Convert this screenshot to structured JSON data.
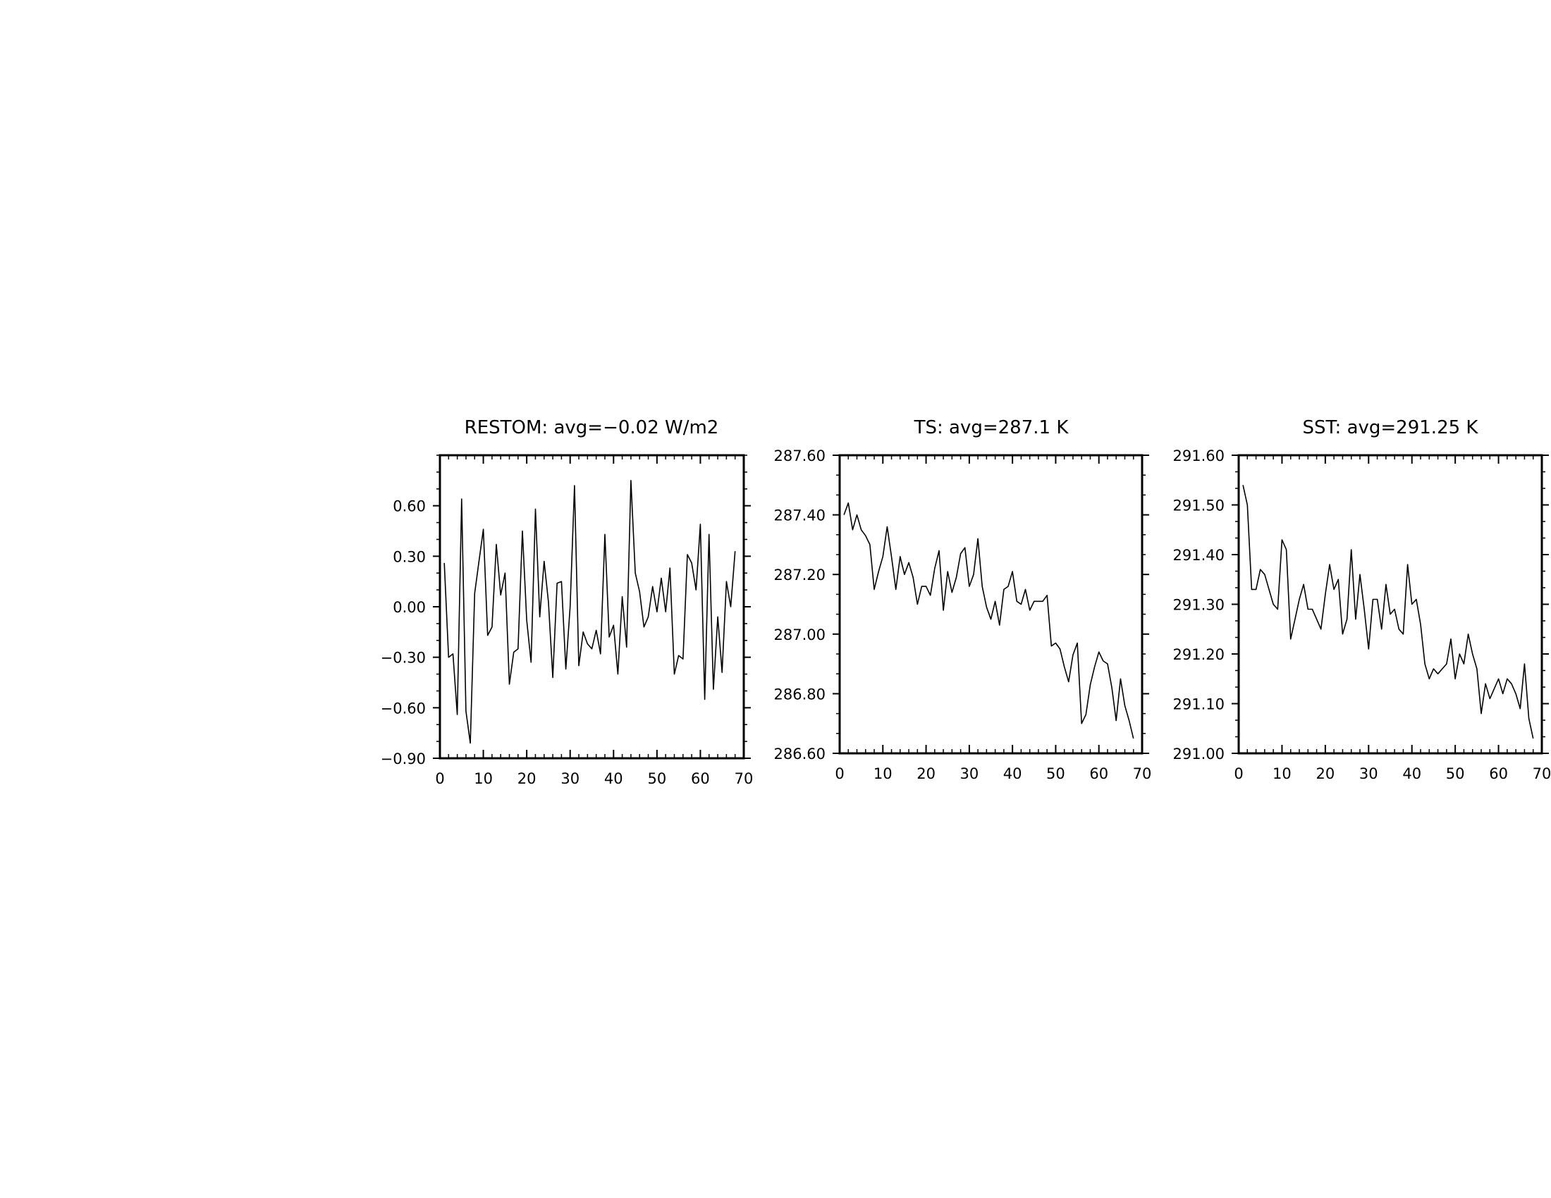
{
  "figure": {
    "background": "#ffffff",
    "line_color": "#000000"
  },
  "chart_data": [
    {
      "type": "line",
      "title": "RESTOM: avg=−0.02 W/m2",
      "xlabel": "",
      "ylabel": "",
      "xlim": [
        0,
        70
      ],
      "ylim": [
        -0.9,
        0.9
      ],
      "xticks": [
        0,
        10,
        20,
        30,
        40,
        50,
        60,
        70
      ],
      "xtick_labels": [
        "0",
        "10",
        "20",
        "30",
        "40",
        "50",
        "60",
        "70"
      ],
      "yticks": [
        -0.9,
        -0.6,
        -0.3,
        0.0,
        0.3,
        0.6
      ],
      "ytick_labels": [
        "−0.90",
        "−0.60",
        "−0.30",
        "0.00",
        "0.30",
        "0.60"
      ],
      "grid": false,
      "x": [
        1,
        2,
        3,
        4,
        5,
        6,
        7,
        8,
        9,
        10,
        11,
        12,
        13,
        14,
        15,
        16,
        17,
        18,
        19,
        20,
        21,
        22,
        23,
        24,
        25,
        26,
        27,
        28,
        29,
        30,
        31,
        32,
        33,
        34,
        35,
        36,
        37,
        38,
        39,
        40,
        41,
        42,
        43,
        44,
        45,
        46,
        47,
        48,
        49,
        50,
        51,
        52,
        53,
        54,
        55,
        56,
        57,
        58,
        59,
        60,
        61,
        62,
        63,
        64,
        65,
        66,
        67,
        68
      ],
      "series": [
        {
          "values": [
            0.26,
            -0.3,
            -0.28,
            -0.64,
            0.64,
            -0.62,
            -0.81,
            0.08,
            0.27,
            0.46,
            -0.17,
            -0.12,
            0.37,
            0.07,
            0.2,
            -0.46,
            -0.27,
            -0.25,
            0.45,
            -0.08,
            -0.33,
            0.58,
            -0.06,
            0.27,
            0.03,
            -0.42,
            0.14,
            0.15,
            -0.37,
            0.0,
            0.72,
            -0.35,
            -0.15,
            -0.22,
            -0.25,
            -0.14,
            -0.28,
            0.43,
            -0.18,
            -0.11,
            -0.4,
            0.06,
            -0.24,
            0.75,
            0.2,
            0.09,
            -0.12,
            -0.06,
            0.12,
            -0.03,
            0.17,
            -0.03,
            0.23,
            -0.4,
            -0.29,
            -0.31,
            0.31,
            0.26,
            0.1,
            0.49,
            -0.55,
            0.43,
            -0.49,
            -0.06,
            -0.39,
            0.15,
            0.0,
            0.33
          ]
        }
      ]
    },
    {
      "type": "line",
      "title": "TS: avg=287.1 K",
      "xlabel": "",
      "ylabel": "",
      "xlim": [
        0,
        70
      ],
      "ylim": [
        286.6,
        287.6
      ],
      "xticks": [
        0,
        10,
        20,
        30,
        40,
        50,
        60,
        70
      ],
      "xtick_labels": [
        "0",
        "10",
        "20",
        "30",
        "40",
        "50",
        "60",
        "70"
      ],
      "yticks": [
        286.6,
        286.8,
        287.0,
        287.2,
        287.4,
        287.6
      ],
      "ytick_labels": [
        "286.60",
        "286.80",
        "287.00",
        "287.20",
        "287.40",
        "287.60"
      ],
      "grid": false,
      "x": [
        1,
        2,
        3,
        4,
        5,
        6,
        7,
        8,
        9,
        10,
        11,
        12,
        13,
        14,
        15,
        16,
        17,
        18,
        19,
        20,
        21,
        22,
        23,
        24,
        25,
        26,
        27,
        28,
        29,
        30,
        31,
        32,
        33,
        34,
        35,
        36,
        37,
        38,
        39,
        40,
        41,
        42,
        43,
        44,
        45,
        46,
        47,
        48,
        49,
        50,
        51,
        52,
        53,
        54,
        55,
        56,
        57,
        58,
        59,
        60,
        61,
        62,
        63,
        64,
        65,
        66,
        67,
        68
      ],
      "series": [
        {
          "values": [
            287.4,
            287.44,
            287.35,
            287.4,
            287.35,
            287.33,
            287.3,
            287.15,
            287.21,
            287.26,
            287.36,
            287.26,
            287.15,
            287.26,
            287.2,
            287.24,
            287.19,
            287.1,
            287.16,
            287.16,
            287.13,
            287.22,
            287.28,
            287.08,
            287.21,
            287.14,
            287.19,
            287.27,
            287.29,
            287.16,
            287.2,
            287.32,
            287.16,
            287.09,
            287.05,
            287.11,
            287.03,
            287.15,
            287.16,
            287.21,
            287.11,
            287.1,
            287.15,
            287.08,
            287.11,
            287.11,
            287.11,
            287.13,
            286.96,
            286.97,
            286.95,
            286.89,
            286.84,
            286.93,
            286.97,
            286.7,
            286.73,
            286.83,
            286.89,
            286.94,
            286.91,
            286.9,
            286.82,
            286.71,
            286.85,
            286.76,
            286.71,
            286.65
          ]
        }
      ]
    },
    {
      "type": "line",
      "title": "SST: avg=291.25 K",
      "xlabel": "",
      "ylabel": "",
      "xlim": [
        0,
        70
      ],
      "ylim": [
        291.0,
        291.6
      ],
      "xticks": [
        0,
        10,
        20,
        30,
        40,
        50,
        60,
        70
      ],
      "xtick_labels": [
        "0",
        "10",
        "20",
        "30",
        "40",
        "50",
        "60",
        "70"
      ],
      "yticks": [
        291.0,
        291.1,
        291.2,
        291.3,
        291.4,
        291.5,
        291.6
      ],
      "ytick_labels": [
        "291.00",
        "291.10",
        "291.20",
        "291.30",
        "291.40",
        "291.50",
        "291.60"
      ],
      "grid": false,
      "x": [
        1,
        2,
        3,
        4,
        5,
        6,
        7,
        8,
        9,
        10,
        11,
        12,
        13,
        14,
        15,
        16,
        17,
        18,
        19,
        20,
        21,
        22,
        23,
        24,
        25,
        26,
        27,
        28,
        29,
        30,
        31,
        32,
        33,
        34,
        35,
        36,
        37,
        38,
        39,
        40,
        41,
        42,
        43,
        44,
        45,
        46,
        47,
        48,
        49,
        50,
        51,
        52,
        53,
        54,
        55,
        56,
        57,
        58,
        59,
        60,
        61,
        62,
        63,
        64,
        65,
        66,
        67,
        68
      ],
      "series": [
        {
          "values": [
            291.54,
            291.5,
            291.33,
            291.33,
            291.37,
            291.36,
            291.33,
            291.3,
            291.29,
            291.43,
            291.41,
            291.23,
            291.27,
            291.31,
            291.34,
            291.29,
            291.29,
            291.27,
            291.25,
            291.32,
            291.38,
            291.33,
            291.35,
            291.24,
            291.27,
            291.41,
            291.27,
            291.36,
            291.29,
            291.21,
            291.31,
            291.31,
            291.25,
            291.34,
            291.28,
            291.29,
            291.25,
            291.24,
            291.38,
            291.3,
            291.31,
            291.26,
            291.18,
            291.15,
            291.17,
            291.16,
            291.17,
            291.18,
            291.23,
            291.15,
            291.2,
            291.18,
            291.24,
            291.2,
            291.17,
            291.08,
            291.14,
            291.11,
            291.13,
            291.15,
            291.12,
            291.15,
            291.14,
            291.12,
            291.09,
            291.18,
            291.07,
            291.03
          ]
        }
      ]
    }
  ]
}
